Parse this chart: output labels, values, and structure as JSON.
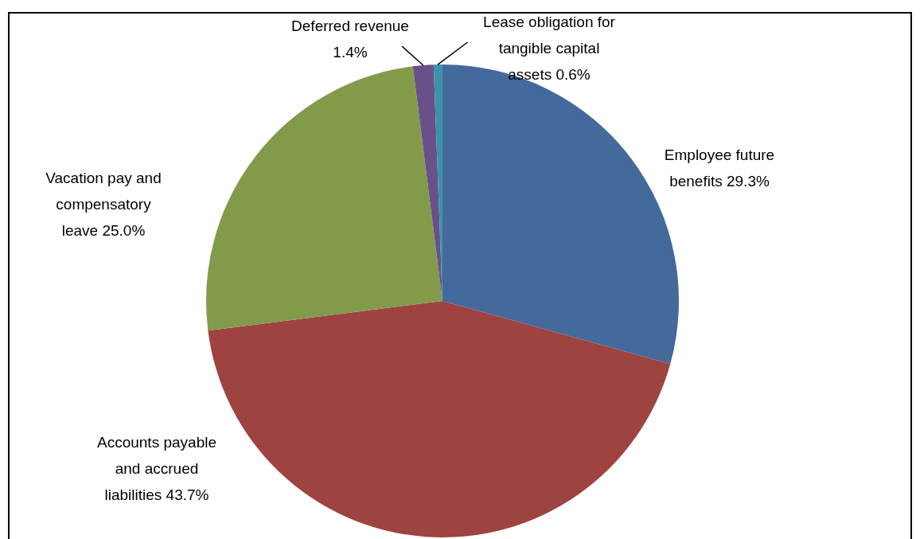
{
  "chart_data": {
    "type": "pie",
    "categories": [
      "Employee future benefits",
      "Accounts payable and accrued liabilities",
      "Vacation pay and compensatory leave",
      "Deferred revenue",
      "Lease obligation for tangible capital assets"
    ],
    "values": [
      29.3,
      43.7,
      25.0,
      1.4,
      0.6
    ],
    "colors": [
      "#44699b",
      "#9e4340",
      "#829b4b",
      "#6a5088",
      "#3b93a9"
    ],
    "value_labels": [
      "29.3%",
      "43.7%",
      "25.0%",
      "1.4%",
      "0.6%"
    ],
    "legend": false
  }
}
